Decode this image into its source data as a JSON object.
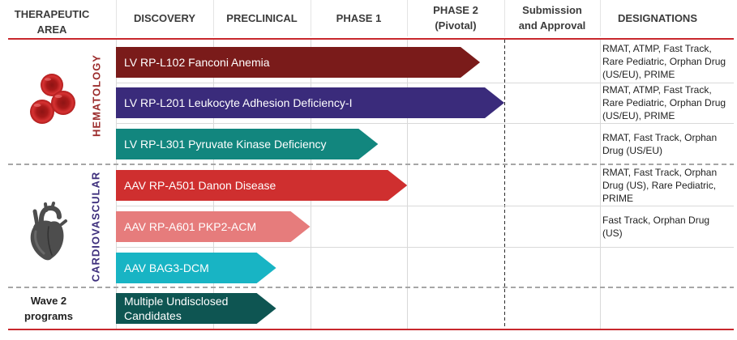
{
  "table_header": {
    "area": [
      "THERAPEUTIC",
      "AREA"
    ],
    "designations": "DESIGNATIONS"
  },
  "colors": {
    "accent_red": "#c8282d"
  },
  "chart_data": {
    "type": "bar",
    "orientation": "horizontal",
    "stages": [
      [
        "DISCOVERY"
      ],
      [
        "PRECLINICAL"
      ],
      [
        "PHASE 1"
      ],
      [
        "PHASE 2",
        "(Pivotal)"
      ],
      [
        "Submission",
        "and Approval"
      ]
    ],
    "areas": [
      {
        "label": [
          "HEMATOLOGY"
        ],
        "label_color": "#9b2b2b",
        "icon": "blood-cells-icon",
        "programs": [
          {
            "label": [
              "LV RP-L102 Fanconi Anemia"
            ],
            "color": "#7a1b1a",
            "progress": 3.75,
            "designations": [
              "RMAT, ATMP, Fast Track,",
              "Rare Pediatric, Orphan Drug",
              "(US/EU), PRIME"
            ]
          },
          {
            "label": [
              "LV RP-L201 Leukocyte Adhesion Deficiency-I"
            ],
            "color": "#3a2b7b",
            "progress": 4.0,
            "designations": [
              "RMAT, ATMP, Fast Track,",
              "Rare Pediatric, Orphan Drug",
              "(US/EU), PRIME"
            ]
          },
          {
            "label": [
              "LV RP-L301 Pyruvate Kinase Deficiency"
            ],
            "color": "#12867e",
            "progress": 2.7,
            "designations": [
              "RMAT, Fast Track, Orphan",
              "Drug (US/EU)"
            ]
          }
        ]
      },
      {
        "label": [
          "CARDIOVASCULAR"
        ],
        "label_color": "#3d2e7c",
        "icon": "heart-icon",
        "programs": [
          {
            "label": [
              "AAV RP-A501 Danon Disease"
            ],
            "color": "#cf2f2f",
            "progress": 3.0,
            "designations": [
              "RMAT, Fast Track, Orphan",
              "Drug (US), Rare Pediatric,",
              "PRIME"
            ]
          },
          {
            "label": [
              "AAV RP-A601 PKP2-ACM"
            ],
            "color": "#e67c7c",
            "progress": 2.0,
            "designations": [
              "Fast Track, Orphan Drug",
              "(US)"
            ]
          },
          {
            "label": [
              "AAV BAG3-DCM"
            ],
            "color": "#18b4c4",
            "progress": 1.65,
            "designations": []
          }
        ]
      },
      {
        "label": [
          "Wave 2",
          "programs"
        ],
        "label_color": "#222222",
        "programs": [
          {
            "label": [
              "Multiple Undisclosed",
              "Candidates"
            ],
            "color": "#0e5552",
            "progress": 1.65,
            "designations": []
          }
        ]
      }
    ]
  }
}
